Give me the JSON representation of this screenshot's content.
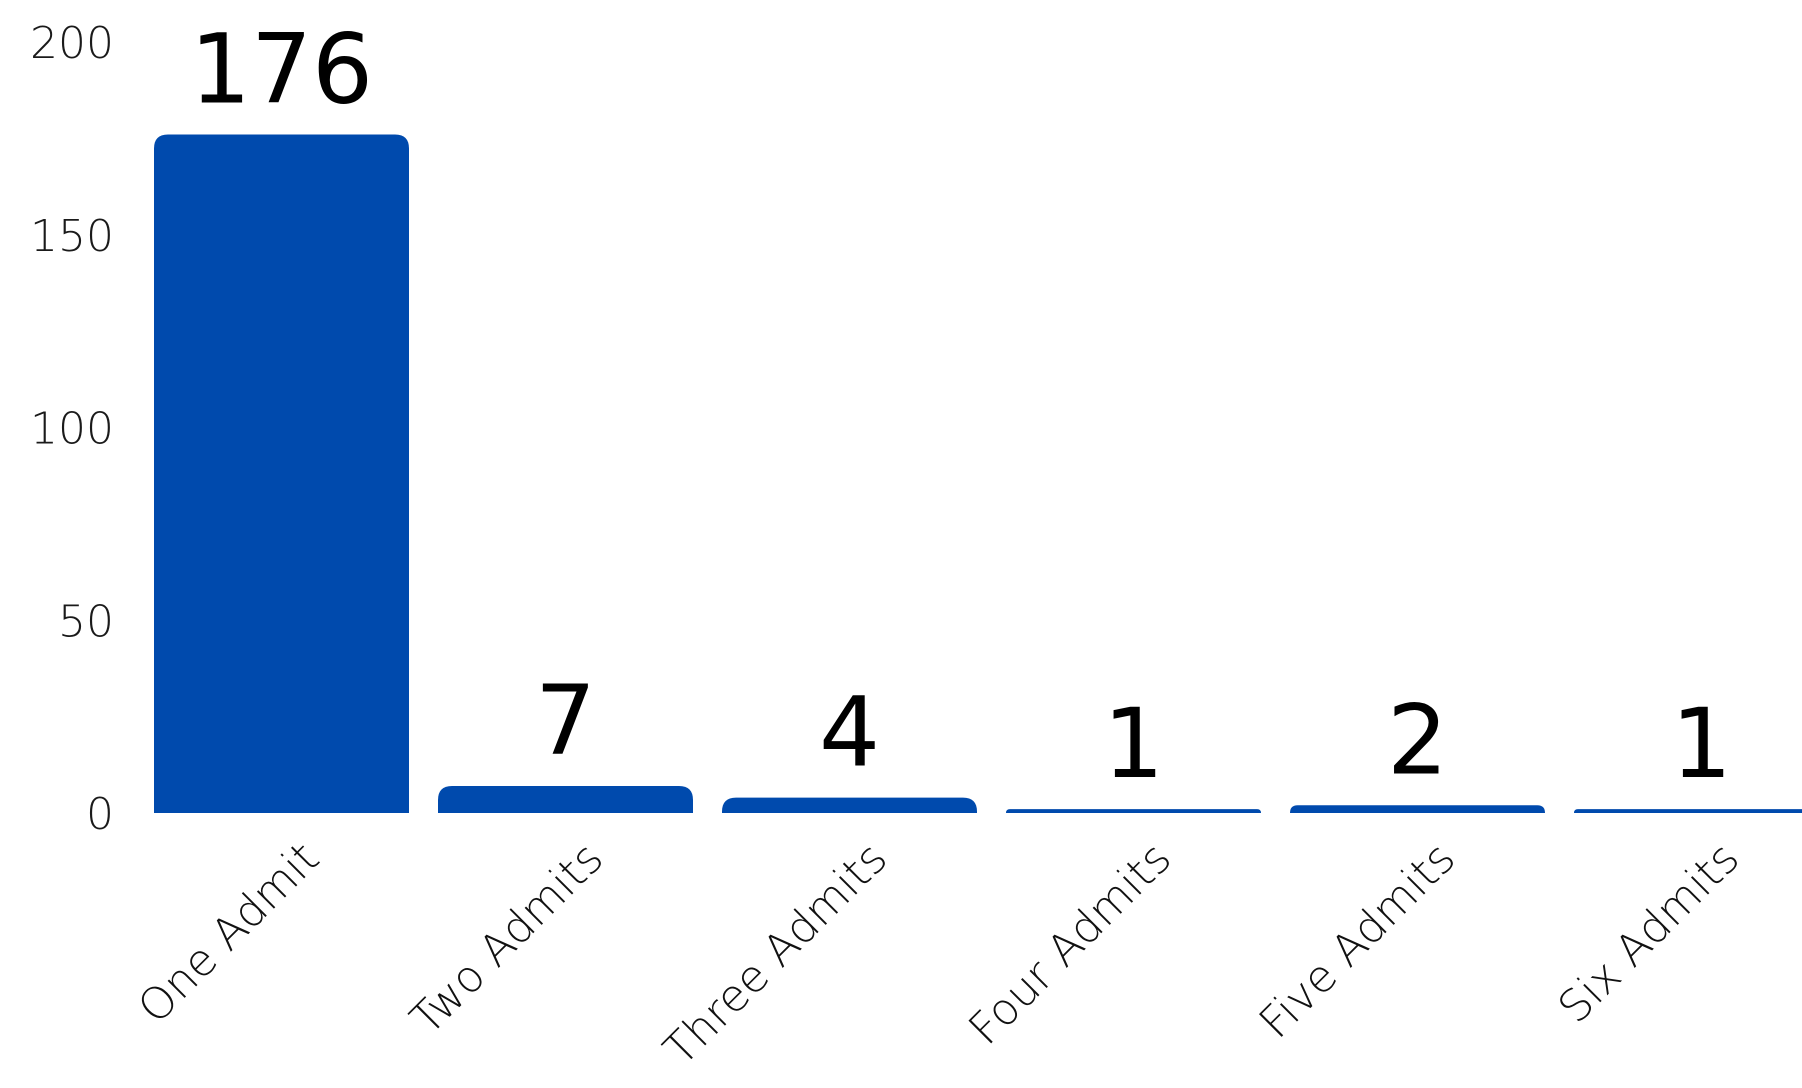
{
  "chart_data": {
    "type": "bar",
    "categories": [
      "One Admit",
      "Two Admits",
      "Three Admits",
      "Four Admits",
      "Five Admits",
      "Six Admits"
    ],
    "values": [
      176,
      7,
      4,
      1,
      2,
      1
    ],
    "data_labels": [
      "176",
      "7",
      "4",
      "1",
      "2",
      "1"
    ],
    "title": "",
    "xlabel": "",
    "ylabel": "",
    "ylim": [
      0,
      200
    ],
    "yticks": [
      0,
      50,
      100,
      150,
      200
    ],
    "ytick_labels": [
      "0",
      "50",
      "100",
      "150",
      "200"
    ],
    "grid": false,
    "legend": "none",
    "bar_color": "#004aad"
  }
}
